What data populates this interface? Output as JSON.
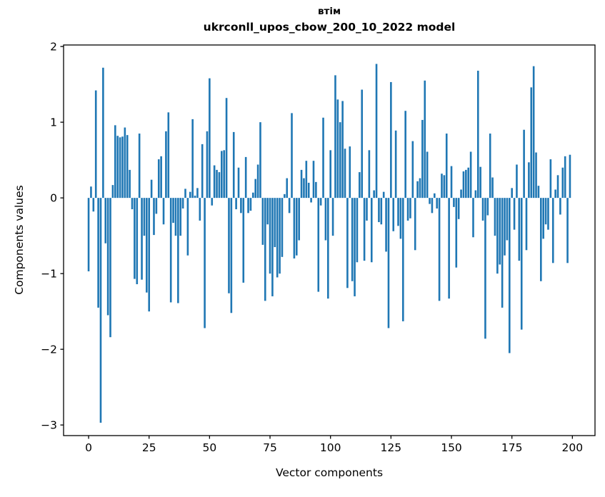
{
  "figure": {
    "title_line1": "втім",
    "title_line2": "ukrconll_upos_cbow_200_10_2022 model",
    "xlabel": "Vector components",
    "ylabel": "Components values"
  },
  "chart_data": {
    "type": "bar",
    "title": "втім",
    "subtitle": "ukrconll_upos_cbow_200_10_2022 model",
    "xlabel": "Vector components",
    "ylabel": "Components values",
    "legend": null,
    "grid": false,
    "bar_color": "#1f77b4",
    "axis_color": "#000000",
    "n_components": 200,
    "xlim": [
      -10.35,
      209.35
    ],
    "ylim": [
      -3.14,
      2.02
    ],
    "x_tick_values": [
      0,
      25,
      50,
      75,
      100,
      125,
      150,
      175,
      200
    ],
    "x_tick_labels": [
      "0",
      "25",
      "50",
      "75",
      "100",
      "125",
      "150",
      "175",
      "200"
    ],
    "y_tick_values": [
      2,
      1,
      0,
      -1,
      -2,
      -3
    ],
    "y_tick_labels": [
      "2",
      "1",
      "0",
      "−1",
      "−2",
      "−3"
    ],
    "values": [
      -0.97,
      0.15,
      -0.18,
      1.42,
      -1.45,
      -2.97,
      1.72,
      -0.6,
      -1.55,
      -1.84,
      0.17,
      0.96,
      0.82,
      0.8,
      0.81,
      0.93,
      0.83,
      0.37,
      -0.15,
      -1.07,
      -1.14,
      0.85,
      -1.08,
      -0.5,
      -1.25,
      -1.5,
      0.24,
      -0.49,
      -0.21,
      0.51,
      0.55,
      -0.35,
      0.88,
      1.13,
      -1.38,
      -0.33,
      -0.5,
      -1.39,
      -0.5,
      -0.14,
      0.12,
      -0.76,
      0.08,
      1.04,
      0.03,
      0.13,
      -0.3,
      0.71,
      -1.72,
      0.88,
      1.58,
      -0.1,
      0.43,
      0.37,
      0.34,
      0.62,
      0.63,
      1.32,
      -1.26,
      -1.52,
      0.87,
      -0.15,
      0.4,
      -0.2,
      -1.12,
      0.54,
      -0.2,
      -0.17,
      0.07,
      0.25,
      0.44,
      1.0,
      -0.62,
      -1.36,
      -0.35,
      -1.0,
      -1.3,
      -0.65,
      -1.05,
      -1.0,
      -0.78,
      0.05,
      0.26,
      -0.2,
      1.12,
      -0.8,
      -0.76,
      -0.56,
      0.37,
      0.26,
      0.49,
      0.2,
      -0.06,
      0.49,
      0.21,
      -1.24,
      -0.1,
      1.06,
      -0.56,
      -1.33,
      0.63,
      -0.5,
      1.62,
      1.3,
      1.0,
      1.28,
      0.65,
      -1.19,
      0.68,
      -1.1,
      -1.3,
      -0.85,
      0.34,
      1.43,
      -0.83,
      -0.3,
      0.63,
      -0.85,
      0.1,
      1.77,
      -0.32,
      -0.35,
      0.08,
      -0.71,
      -1.72,
      1.53,
      -0.44,
      0.89,
      -0.37,
      -0.54,
      -1.63,
      1.15,
      -0.3,
      -0.27,
      0.75,
      -0.69,
      0.22,
      0.26,
      1.03,
      1.55,
      0.61,
      -0.08,
      -0.2,
      0.06,
      -0.14,
      -1.36,
      0.32,
      0.3,
      0.85,
      -1.33,
      0.42,
      -0.12,
      -0.92,
      -0.28,
      0.11,
      0.35,
      0.37,
      0.4,
      0.61,
      -0.52,
      0.1,
      1.68,
      0.41,
      -0.3,
      -1.86,
      -0.23,
      0.85,
      0.27,
      -0.5,
      -1.0,
      -0.88,
      -1.45,
      -0.76,
      -0.56,
      -2.05,
      0.13,
      -0.42,
      0.44,
      -0.83,
      -1.74,
      0.9,
      -0.69,
      0.47,
      1.46,
      1.74,
      0.6,
      0.16,
      -1.1,
      -0.54,
      -0.35,
      -0.42,
      0.51,
      -0.86,
      0.11,
      0.3,
      -0.22,
      0.4,
      0.55,
      -0.86,
      0.57
    ]
  }
}
